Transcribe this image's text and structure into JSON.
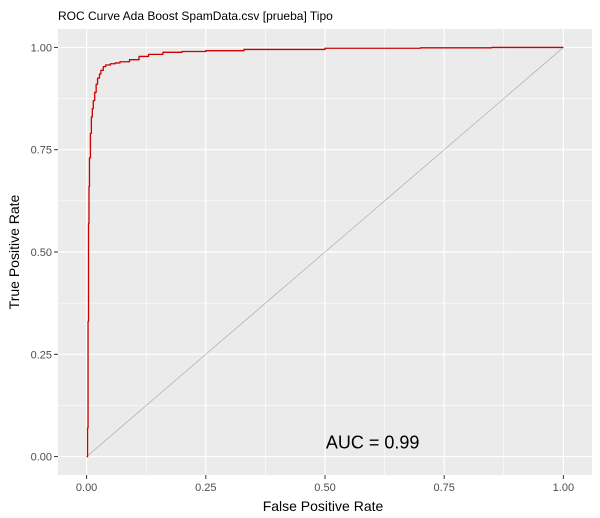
{
  "chart_data": {
    "type": "line",
    "title": "ROC Curve Ada Boost SpamData.csv [prueba] Tipo",
    "xlabel": "False Positive Rate",
    "ylabel": "True Positive Rate",
    "xlim": [
      -0.06,
      1.06
    ],
    "ylim": [
      -0.045,
      1.045
    ],
    "xticks": [
      0,
      0.25,
      0.5,
      0.75,
      1
    ],
    "yticks": [
      0,
      0.25,
      0.5,
      0.75,
      1
    ],
    "xtick_labels": [
      "0.00",
      "0.25",
      "0.50",
      "0.75",
      "1.00"
    ],
    "ytick_labels": [
      "0.00",
      "0.25",
      "0.50",
      "0.75",
      "1.00"
    ],
    "grid": true,
    "panel_background": "#ebebeb",
    "series": [
      {
        "color": "#cc0000",
        "x": [
          0,
          0.002,
          0.003,
          0.004,
          0.005,
          0.006,
          0.008,
          0.01,
          0.012,
          0.014,
          0.017,
          0.02,
          0.023,
          0.027,
          0.03,
          0.035,
          0.04,
          0.05,
          0.06,
          0.07,
          0.09,
          0.11,
          0.13,
          0.16,
          0.2,
          0.25,
          0.33,
          0.5,
          0.7,
          0.85,
          1.0
        ],
        "y": [
          0,
          0.07,
          0.33,
          0.57,
          0.66,
          0.73,
          0.79,
          0.83,
          0.85,
          0.87,
          0.89,
          0.91,
          0.925,
          0.935,
          0.944,
          0.953,
          0.957,
          0.96,
          0.962,
          0.965,
          0.97,
          0.978,
          0.983,
          0.988,
          0.99,
          0.992,
          0.995,
          0.998,
          0.999,
          1.0,
          1.0
        ]
      },
      {
        "color": "#a6a6a6",
        "x": [
          0,
          1
        ],
        "y": [
          0,
          1
        ]
      }
    ],
    "annotations": [
      {
        "text": "AUC = 0.99",
        "x": 0.6,
        "y": 0.02
      }
    ]
  }
}
